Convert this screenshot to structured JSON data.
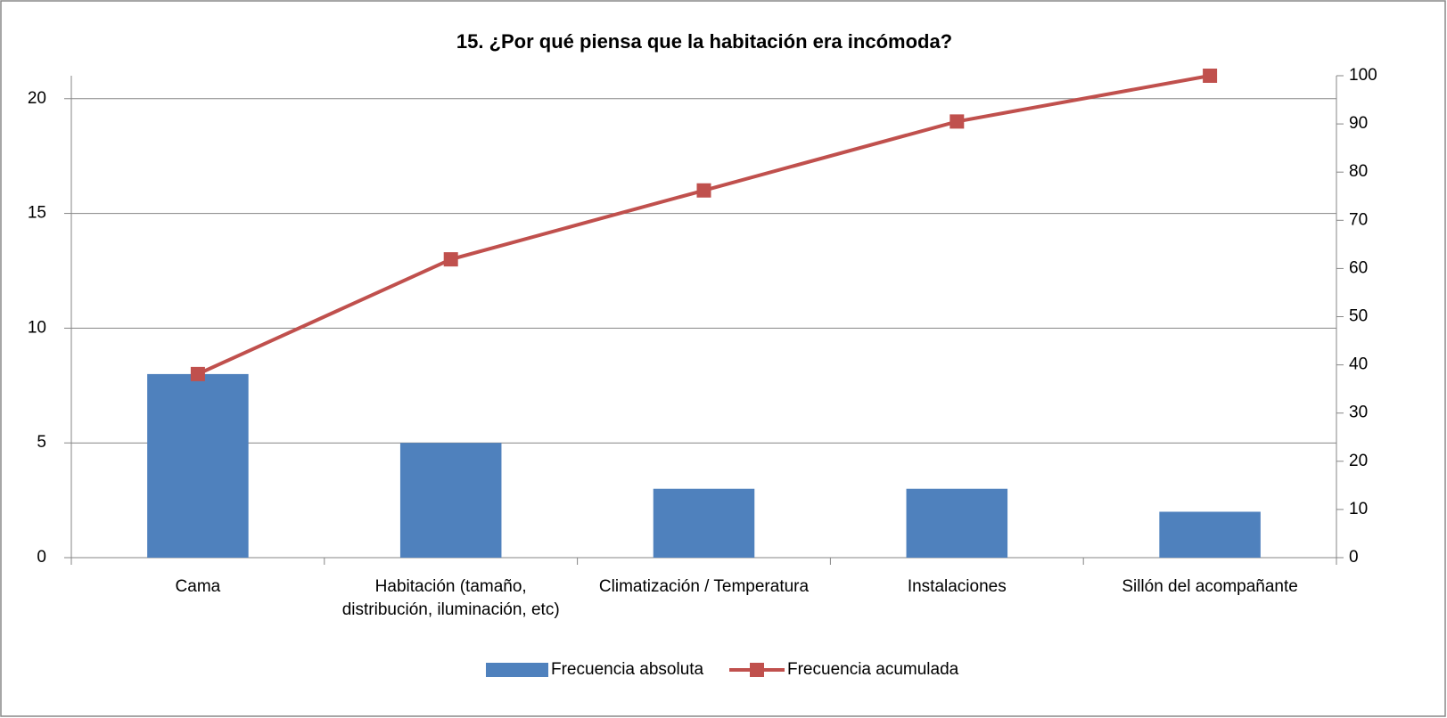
{
  "chart_data": {
    "type": "pareto",
    "title": "15. ¿Por qué piensa que la habitación era incómoda?",
    "categories": [
      "Cama",
      "Habitación (tamaño, distribución, iluminación, etc)",
      "Climatización / Temperatura",
      "Instalaciones",
      "Sillón del acompañante"
    ],
    "series": [
      {
        "name": "Frecuencia absoluta",
        "type": "bar",
        "color": "#4f81bd",
        "values": [
          8,
          5,
          3,
          3,
          2
        ]
      },
      {
        "name": "Frecuencia acumulada",
        "type": "line",
        "axis": "y2",
        "color": "#c0504d",
        "values": [
          38.1,
          61.9,
          76.2,
          90.5,
          100
        ]
      }
    ],
    "ylim": [
      0,
      21
    ],
    "yticks": [
      0,
      5,
      10,
      15,
      20
    ],
    "y2lim": [
      0,
      100
    ],
    "y2ticks": [
      0,
      10,
      20,
      30,
      40,
      50,
      60,
      70,
      80,
      90,
      100
    ],
    "grid": true,
    "legend": "bottom"
  }
}
